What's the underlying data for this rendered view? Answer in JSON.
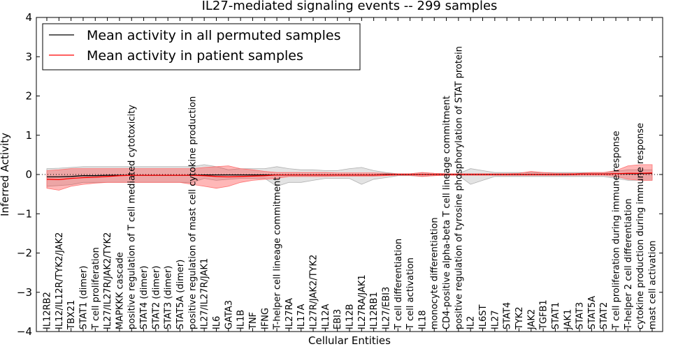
{
  "chart_data": {
    "type": "line",
    "title": "IL27-mediated signaling events -- 299 samples",
    "xlabel": "Cellular Entities",
    "ylabel": "Inferred Activity",
    "ylim": [
      -4,
      4
    ],
    "yticks": [
      -4,
      -3,
      -2,
      -1,
      0,
      1,
      2,
      3,
      4
    ],
    "categories": [
      "IL12RB2",
      "IL12/IL12R/TYK2/JAK2",
      "TBX21",
      "STAT1 (dimer)",
      "T cell proliferation",
      "IL27/IL27R/JAK2/TYK2",
      "MAPKKK cascade",
      "positive regulation of T cell mediated cytotoxicity",
      "STAT4 (dimer)",
      "STAT2 (dimer)",
      "STAT3 (dimer)",
      "STAT5A (dimer)",
      "positive regulation of mast cell cytokine production",
      "IL27/IL27R/JAK1",
      "IL6",
      "GATA3",
      "IL1B",
      "TNF",
      "IFNG",
      "T-helper cell lineage commitment",
      "IL27RA",
      "IL17A",
      "IL27R/JAK2/TYK2",
      "IL12A",
      "EBI3",
      "IL12B",
      "IL27RA/JAK1",
      "IL12RB1",
      "IL27/EBI3",
      "T cell differentiation",
      "T cell activation",
      "IL18",
      "monocyte differentiation",
      "CD4-positive alpha-beta T cell lineage commitment",
      "positive regulation of tyrosine phosphorylation of STAT protein",
      "IL2",
      "IL6ST",
      "IL27",
      "STAT4",
      "TYK2",
      "JAK2",
      "TGFB1",
      "STAT1",
      "JAK1",
      "STAT3",
      "STAT5A",
      "STAT2",
      "T cell proliferation during immune response",
      "T-helper 2 cell differentiation",
      "cytokine production during immune response",
      "mast cell activation"
    ],
    "series": [
      {
        "name": "Mean activity in all permuted samples",
        "color": "#000000",
        "values": [
          -0.06,
          -0.06,
          -0.05,
          -0.03,
          -0.03,
          -0.02,
          -0.02,
          -0.02,
          -0.02,
          -0.02,
          -0.02,
          -0.02,
          -0.02,
          -0.01,
          -0.01,
          -0.01,
          -0.01,
          -0.01,
          -0.01,
          -0.01,
          -0.01,
          -0.01,
          -0.01,
          -0.01,
          -0.01,
          -0.01,
          -0.01,
          -0.01,
          0.0,
          0.0,
          0.0,
          0.0,
          0.0,
          0.0,
          0.0,
          0.0,
          0.0,
          0.0,
          0.0,
          0.0,
          0.0,
          0.0,
          0.0,
          0.0,
          0.01,
          0.01,
          0.01,
          0.02,
          0.02,
          0.02,
          0.03
        ],
        "band_lower": [
          -0.3,
          -0.28,
          -0.26,
          -0.2,
          -0.2,
          -0.2,
          -0.2,
          -0.2,
          -0.2,
          -0.2,
          -0.2,
          -0.2,
          -0.2,
          -0.1,
          -0.15,
          -0.12,
          -0.1,
          -0.1,
          -0.1,
          -0.3,
          -0.2,
          -0.2,
          -0.15,
          -0.1,
          -0.1,
          -0.1,
          -0.25,
          -0.12,
          -0.08,
          -0.03,
          -0.03,
          -0.05,
          -0.03,
          -0.02,
          -0.02,
          -0.25,
          -0.15,
          -0.05,
          -0.05,
          -0.05,
          -0.05,
          -0.05,
          -0.05,
          -0.05,
          -0.05,
          -0.05,
          -0.05,
          -0.1,
          -0.15,
          -0.15,
          -0.15
        ],
        "band_upper": [
          0.15,
          0.16,
          0.18,
          0.2,
          0.2,
          0.2,
          0.2,
          0.2,
          0.2,
          0.2,
          0.2,
          0.2,
          0.2,
          0.25,
          0.2,
          0.12,
          0.15,
          0.15,
          0.15,
          0.2,
          0.15,
          0.12,
          0.12,
          0.1,
          0.1,
          0.15,
          0.18,
          0.1,
          0.05,
          0.02,
          0.02,
          0.05,
          0.03,
          0.02,
          0.02,
          0.15,
          0.1,
          0.05,
          0.05,
          0.05,
          0.05,
          0.05,
          0.05,
          0.05,
          0.05,
          0.05,
          0.05,
          0.08,
          0.12,
          0.12,
          0.12
        ]
      },
      {
        "name": "Mean activity in patient samples",
        "color": "#ff0000",
        "values": [
          -0.12,
          -0.13,
          -0.1,
          -0.08,
          -0.07,
          -0.05,
          -0.03,
          -0.02,
          -0.02,
          -0.02,
          -0.02,
          -0.02,
          -0.02,
          -0.03,
          -0.05,
          -0.06,
          -0.05,
          -0.04,
          -0.03,
          -0.01,
          -0.01,
          -0.01,
          -0.01,
          -0.01,
          -0.01,
          -0.01,
          -0.01,
          -0.01,
          -0.01,
          0.0,
          0.0,
          0.0,
          0.0,
          0.0,
          0.0,
          0.0,
          0.0,
          0.0,
          0.0,
          0.0,
          0.0,
          0.0,
          0.0,
          0.0,
          0.01,
          0.01,
          0.01,
          0.02,
          0.03,
          0.03,
          0.04
        ],
        "band_lower": [
          -0.35,
          -0.4,
          -0.3,
          -0.25,
          -0.22,
          -0.2,
          -0.2,
          -0.2,
          -0.2,
          -0.2,
          -0.2,
          -0.2,
          -0.25,
          -0.3,
          -0.35,
          -0.3,
          -0.2,
          -0.15,
          -0.12,
          -0.1,
          -0.05,
          -0.05,
          -0.05,
          -0.05,
          -0.04,
          -0.04,
          -0.04,
          -0.04,
          -0.03,
          -0.02,
          -0.02,
          -0.05,
          -0.03,
          -0.02,
          -0.02,
          -0.02,
          -0.02,
          -0.02,
          -0.02,
          -0.02,
          -0.02,
          -0.02,
          -0.02,
          -0.02,
          -0.02,
          -0.02,
          -0.02,
          -0.05,
          -0.12,
          -0.15,
          -0.15
        ],
        "band_upper": [
          0.1,
          0.12,
          0.15,
          0.15,
          0.15,
          0.15,
          0.15,
          0.15,
          0.15,
          0.15,
          0.15,
          0.15,
          0.15,
          0.18,
          0.2,
          0.22,
          0.15,
          0.12,
          0.08,
          0.05,
          0.05,
          0.05,
          0.05,
          0.05,
          0.04,
          0.04,
          0.04,
          0.04,
          0.03,
          0.02,
          0.02,
          0.05,
          0.03,
          0.02,
          0.02,
          0.02,
          0.02,
          0.02,
          0.02,
          0.03,
          0.08,
          0.05,
          0.03,
          0.03,
          0.03,
          0.05,
          0.05,
          0.1,
          0.22,
          0.25,
          0.25
        ]
      }
    ],
    "legend": "top-left",
    "reference_line": 0
  }
}
